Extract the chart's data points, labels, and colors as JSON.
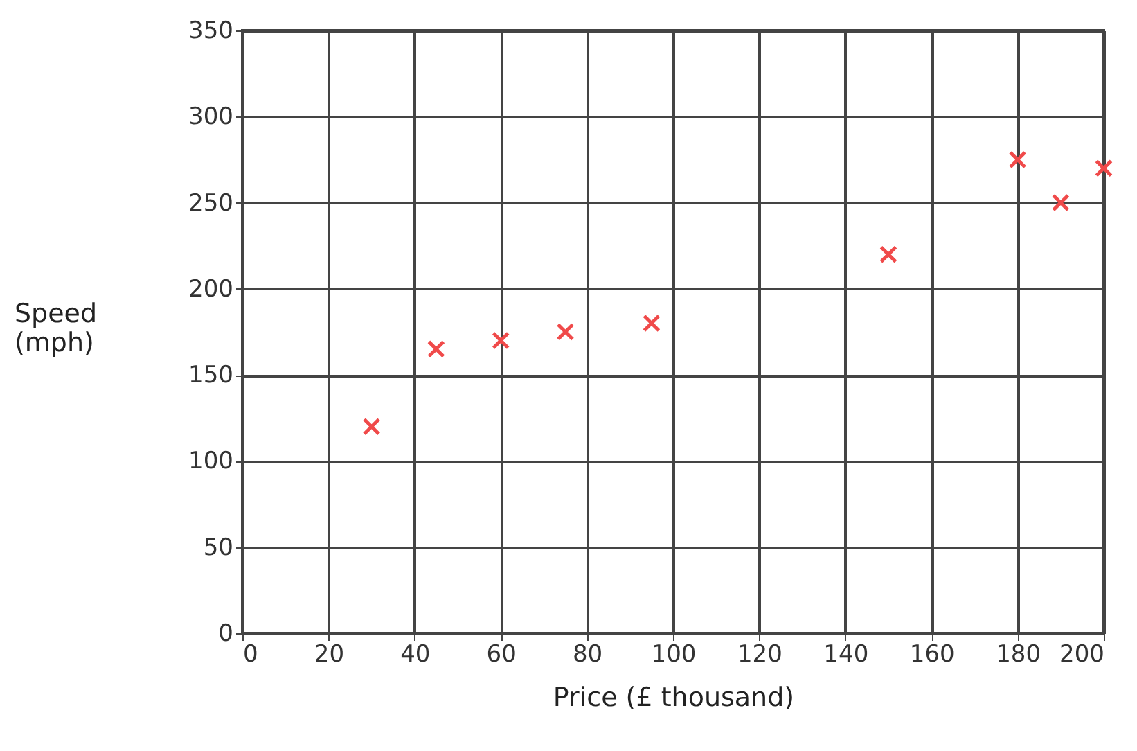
{
  "chart_data": {
    "type": "scatter",
    "xlabel": "Price (£ thousand)",
    "ylabel": "Speed (mph)",
    "x": [
      30,
      45,
      60,
      75,
      95,
      150,
      180,
      190,
      200
    ],
    "series": [
      {
        "color": "#f04a4a",
        "values": [
          120,
          165,
          170,
          175,
          180,
          220,
          275,
          250,
          270
        ]
      }
    ],
    "xlim": [
      0,
      200
    ],
    "xticks": [
      0,
      20,
      40,
      60,
      80,
      100,
      120,
      140,
      160,
      180,
      200
    ],
    "ylim": [
      0,
      350
    ],
    "yticks": [
      0,
      50,
      100,
      150,
      200,
      250,
      300,
      350
    ],
    "grid": true,
    "marker": "cross"
  }
}
